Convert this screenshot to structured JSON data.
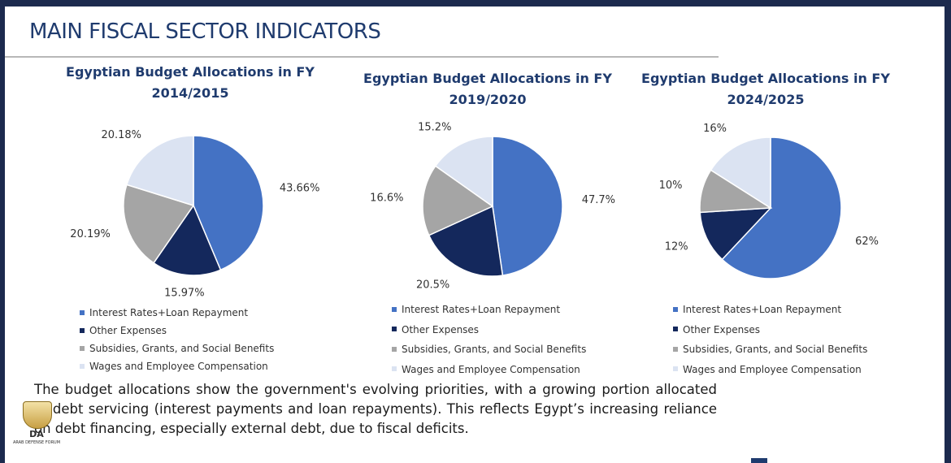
{
  "page_title": "MAIN FISCAL SECTOR INDICATORS",
  "legend": {
    "colors": [
      "#4472c4",
      "#14285c",
      "#a5a5a5",
      "#dbe3f2"
    ],
    "labels": [
      "Interest Rates+Loan Repayment",
      "Other Expenses",
      "Subsidies, Grants, and Social Benefits",
      "Wages and Employee Compensation"
    ]
  },
  "chart_data": [
    {
      "type": "pie",
      "title_line1": "Egyptian Budget Allocations in FY",
      "title_line2": "2014/2015",
      "categories": [
        "Interest Rates+Loan Repayment",
        "Other Expenses",
        "Subsidies, Grants, and Social Benefits",
        "Wages and Employee Compensation"
      ],
      "values": [
        43.66,
        15.97,
        20.19,
        20.18
      ],
      "labels": [
        "43.66%",
        "15.97%",
        "20.19%",
        "20.18%"
      ]
    },
    {
      "type": "pie",
      "title_line1": "Egyptian Budget Allocations in FY",
      "title_line2": "2019/2020",
      "categories": [
        "Interest Rates+Loan Repayment",
        "Other Expenses",
        "Subsidies, Grants, and Social Benefits",
        "Wages and Employee Compensation"
      ],
      "values": [
        47.7,
        20.5,
        16.6,
        15.2
      ],
      "labels": [
        "47.7%",
        "20.5%",
        "16.6%",
        "15.2%"
      ]
    },
    {
      "type": "pie",
      "title_line1": "Egyptian Budget Allocations in FY",
      "title_line2": "2024/2025",
      "categories": [
        "Interest Rates+Loan Repayment",
        "Other Expenses",
        "Subsidies, Grants, and Social Benefits",
        "Wages and Employee Compensation"
      ],
      "values": [
        62,
        12,
        10,
        16
      ],
      "labels": [
        "62%",
        "12%",
        "10%",
        "16%"
      ]
    }
  ],
  "summary": "The budget allocations show the government's evolving priorities, with a growing portion allocated to debt servicing (interest payments and loan repayments). This reflects Egypt’s increasing reliance on debt financing, especially external debt, due to fiscal deficits.",
  "watermark": {
    "mark": "DA",
    "text": "ARAB DEFENSE FORUM"
  }
}
